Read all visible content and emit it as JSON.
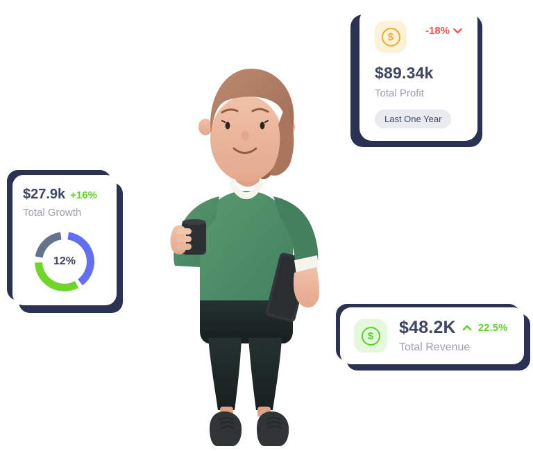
{
  "colors": {
    "shadow_navy": "#2b3153",
    "value_text": "#3d4663",
    "muted_text": "#9aa0ae",
    "red": "#f4564e",
    "green": "#5bd626"
  },
  "cards": {
    "profit": {
      "value": "$89.34k",
      "label": "Total Profit",
      "change": "-18%",
      "change_direction": "down",
      "change_color": "#f4564e",
      "badge": "Last One Year",
      "icon": "dollar-coin",
      "icon_glyph": "$",
      "icon_color": "#ecac2b",
      "icon_bg": "#fcf2d9"
    },
    "growth": {
      "value": "$27.9k",
      "change": "+16%",
      "change_color": "#5bd626",
      "label": "Total Growth",
      "center_label": "12%"
    },
    "revenue": {
      "value": "$48.2K",
      "change": "22.5%",
      "change_direction": "up",
      "change_color": "#5bd626",
      "label": "Total Revenue",
      "icon": "dollar-coin",
      "icon_glyph": "$",
      "icon_color": "#58d224",
      "icon_bg": "#e4f8dc"
    }
  },
  "chart_data": {
    "type": "pie",
    "variant": "donut",
    "title": "Total Growth",
    "center_label": "12%",
    "legend_position": "none",
    "segments": [
      {
        "name": "primary",
        "color": "#636ff1",
        "start_deg": 8,
        "end_deg": 143
      },
      {
        "name": "success",
        "color": "#6fd52a",
        "start_deg": 152,
        "end_deg": 268
      },
      {
        "name": "muted",
        "color": "#64748b",
        "start_deg": 280,
        "end_deg": 352
      }
    ]
  }
}
